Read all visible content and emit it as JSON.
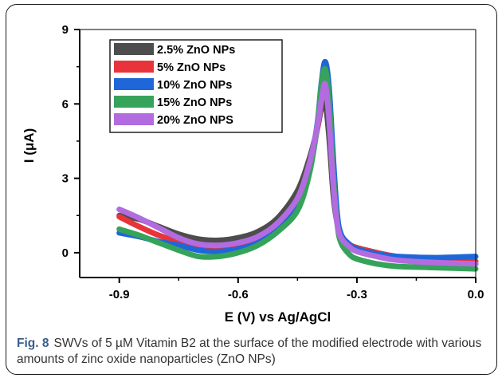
{
  "chart_data": {
    "type": "line",
    "xlabel": "E (V) vs Ag/AgCl",
    "ylabel": "I (μA)",
    "xlim": [
      -1.0,
      0.0
    ],
    "ylim": [
      -1.0,
      9.0
    ],
    "x_ticks": [
      -0.9,
      -0.6,
      -0.3,
      0.0
    ],
    "x_tick_labels": [
      "-0.9",
      "-0.6",
      "-0.3",
      "0.0"
    ],
    "y_ticks": [
      0,
      3,
      6,
      9
    ],
    "y_tick_labels": [
      "0",
      "3",
      "6",
      "9"
    ],
    "grid": false,
    "legend_position": "top-left",
    "series": [
      {
        "name": "2.5% ZnO NPs",
        "color": "#4d4d4d",
        "x": [
          -0.9,
          -0.85,
          -0.8,
          -0.75,
          -0.7,
          -0.65,
          -0.6,
          -0.55,
          -0.5,
          -0.45,
          -0.42,
          -0.4,
          -0.39,
          -0.38,
          -0.37,
          -0.36,
          -0.35,
          -0.34,
          -0.32,
          -0.3,
          -0.25,
          -0.2,
          -0.1,
          0.0
        ],
        "y": [
          1.5,
          1.35,
          1.05,
          0.75,
          0.55,
          0.5,
          0.6,
          0.85,
          1.4,
          2.5,
          3.8,
          5.0,
          5.8,
          6.1,
          4.6,
          2.4,
          1.2,
          0.7,
          0.35,
          0.2,
          0.0,
          -0.2,
          -0.35,
          -0.45
        ]
      },
      {
        "name": "5% ZnO NPs",
        "color": "#e8333b",
        "x": [
          -0.9,
          -0.85,
          -0.8,
          -0.75,
          -0.7,
          -0.65,
          -0.6,
          -0.55,
          -0.5,
          -0.45,
          -0.42,
          -0.4,
          -0.39,
          -0.38,
          -0.37,
          -0.36,
          -0.35,
          -0.34,
          -0.32,
          -0.3,
          -0.25,
          -0.2,
          -0.1,
          0.0
        ],
        "y": [
          1.45,
          1.05,
          0.7,
          0.45,
          0.3,
          0.25,
          0.35,
          0.6,
          1.1,
          2.1,
          3.5,
          5.0,
          6.1,
          6.9,
          5.6,
          3.1,
          1.4,
          0.7,
          0.35,
          0.2,
          0.0,
          -0.15,
          -0.3,
          -0.35
        ]
      },
      {
        "name": "10% ZnO NPs",
        "color": "#1f67d8",
        "x": [
          -0.9,
          -0.85,
          -0.8,
          -0.75,
          -0.7,
          -0.65,
          -0.6,
          -0.55,
          -0.5,
          -0.45,
          -0.42,
          -0.4,
          -0.39,
          -0.38,
          -0.37,
          -0.36,
          -0.35,
          -0.34,
          -0.32,
          -0.3,
          -0.25,
          -0.2,
          -0.1,
          0.0
        ],
        "y": [
          0.8,
          0.65,
          0.45,
          0.3,
          0.1,
          0.05,
          0.15,
          0.4,
          0.95,
          1.9,
          3.4,
          5.2,
          6.8,
          7.7,
          6.6,
          3.9,
          1.6,
          0.75,
          0.35,
          0.15,
          -0.05,
          -0.15,
          -0.2,
          -0.15
        ]
      },
      {
        "name": "15% ZnO NPs",
        "color": "#36a35a",
        "x": [
          -0.9,
          -0.85,
          -0.8,
          -0.75,
          -0.7,
          -0.65,
          -0.6,
          -0.55,
          -0.5,
          -0.45,
          -0.42,
          -0.4,
          -0.39,
          -0.38,
          -0.37,
          -0.36,
          -0.35,
          -0.34,
          -0.32,
          -0.3,
          -0.25,
          -0.2,
          -0.1,
          0.0
        ],
        "y": [
          0.95,
          0.7,
          0.4,
          0.1,
          -0.15,
          -0.15,
          0.0,
          0.3,
          0.85,
          1.7,
          3.2,
          5.1,
          6.7,
          7.4,
          6.1,
          3.2,
          1.2,
          0.4,
          -0.05,
          -0.25,
          -0.45,
          -0.55,
          -0.6,
          -0.65
        ]
      },
      {
        "name": "20% ZnO NPS",
        "color": "#b36be0",
        "x": [
          -0.9,
          -0.85,
          -0.8,
          -0.75,
          -0.7,
          -0.65,
          -0.6,
          -0.55,
          -0.5,
          -0.45,
          -0.42,
          -0.4,
          -0.39,
          -0.38,
          -0.37,
          -0.36,
          -0.35,
          -0.34,
          -0.32,
          -0.3,
          -0.25,
          -0.2,
          -0.1,
          0.0
        ],
        "y": [
          1.75,
          1.4,
          1.0,
          0.6,
          0.35,
          0.3,
          0.4,
          0.65,
          1.2,
          2.2,
          3.6,
          5.1,
          6.1,
          6.8,
          5.3,
          2.8,
          1.2,
          0.6,
          0.25,
          0.05,
          -0.15,
          -0.3,
          -0.4,
          -0.45
        ]
      }
    ]
  },
  "caption": {
    "label": "Fig. 8",
    "text": "SWVs of 5 µM Vitamin B2 at the surface of the modified electrode with various amounts of zinc oxide nanoparticles (ZnO NPs)"
  }
}
